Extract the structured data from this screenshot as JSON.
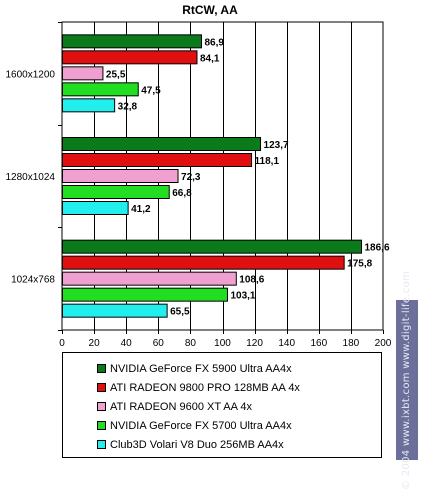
{
  "chart_data": {
    "type": "bar",
    "orientation": "horizontal",
    "title": "RtCW, AA",
    "categories": [
      "1600x1200",
      "1280x1024",
      "1024x768"
    ],
    "series": [
      {
        "name": "NVIDIA GeForce FX 5900 Ultra AA4x",
        "color": "#0a7a1a",
        "values": [
          86.9,
          123.7,
          186.6
        ],
        "labels": [
          "86,9",
          "123,7",
          "186,6"
        ]
      },
      {
        "name": "ATI RADEON 9800 PRO 128MB AA 4x",
        "color": "#e01010",
        "values": [
          84.1,
          118.1,
          175.8
        ],
        "labels": [
          "84,1",
          "118,1",
          "175,8"
        ]
      },
      {
        "name": "ATI RADEON 9600 XT AA 4x",
        "color": "#f0a0d0",
        "values": [
          25.5,
          72.3,
          108.6
        ],
        "labels": [
          "25,5",
          "72,3",
          "108,6"
        ]
      },
      {
        "name": "NVIDIA GeForce FX 5700 Ultra AA4x",
        "color": "#22dd22",
        "values": [
          47.5,
          66.8,
          103.1
        ],
        "labels": [
          "47,5",
          "66,8",
          "103,1"
        ]
      },
      {
        "name": "Club3D Volari V8 Duo 256MB AA4x",
        "color": "#22eeee",
        "values": [
          32.8,
          41.2,
          65.5
        ],
        "labels": [
          "32,8",
          "41,2",
          "65,5"
        ]
      }
    ],
    "xlim": [
      0,
      200
    ],
    "xticks": [
      0,
      20,
      40,
      60,
      80,
      100,
      120,
      140,
      160,
      180,
      200
    ],
    "grid": true,
    "legend_position": "bottom"
  },
  "watermark": "© 2004 www.ixbt.com  www.digit-life.com"
}
